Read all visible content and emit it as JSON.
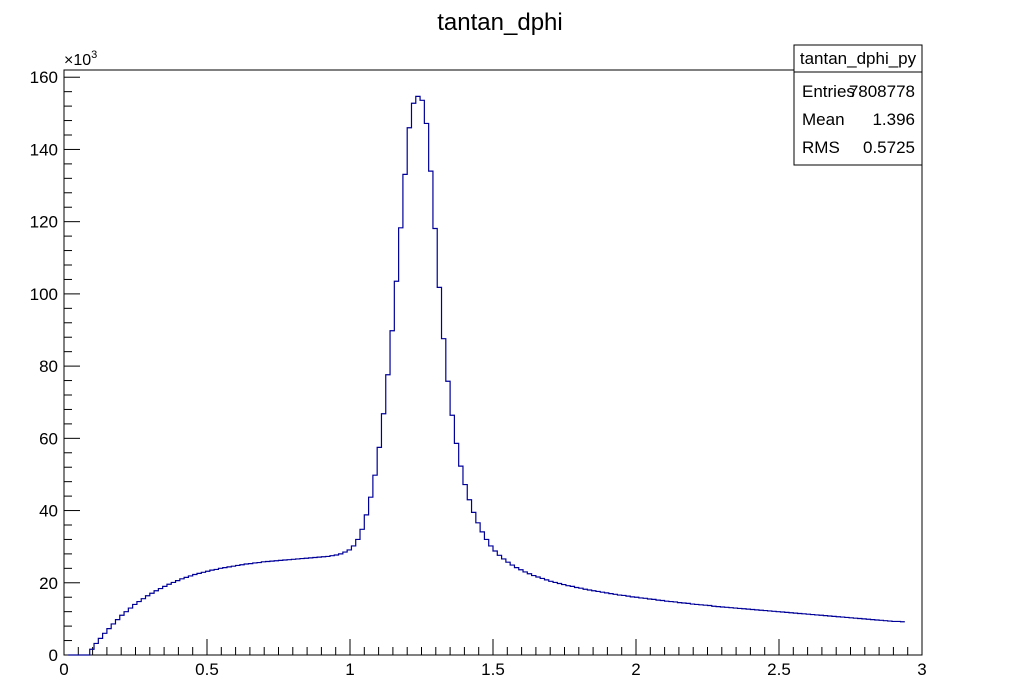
{
  "chart_data": {
    "type": "histogram",
    "title": "tantan_dphi",
    "xlabel": "",
    "ylabel": "",
    "xlim": [
      0,
      3
    ],
    "ylim": [
      0,
      162000
    ],
    "y_exponent_label": "×10³",
    "x_ticks": [
      0,
      0.5,
      1,
      1.5,
      2,
      2.5,
      3
    ],
    "x_tick_labels": [
      "0",
      "0.5",
      "1",
      "1.5",
      "2",
      "2.5",
      "3"
    ],
    "y_ticks": [
      0,
      20000,
      40000,
      60000,
      80000,
      100000,
      120000,
      140000,
      160000
    ],
    "y_tick_labels": [
      "0",
      "20",
      "40",
      "60",
      "80",
      "100",
      "120",
      "140",
      "160"
    ],
    "line_color": "#000099",
    "grid": false,
    "bin_width": 0.015,
    "x_start": 0.015,
    "values": [
      0,
      0,
      0,
      0,
      0,
      1600,
      3200,
      4600,
      6000,
      7300,
      8600,
      9800,
      11000,
      12000,
      13000,
      14000,
      14800,
      15600,
      16400,
      17100,
      17800,
      18400,
      19000,
      19600,
      20100,
      20600,
      21100,
      21500,
      21900,
      22300,
      22600,
      22900,
      23200,
      23500,
      23700,
      24000,
      24200,
      24400,
      24600,
      24800,
      25000,
      25200,
      25300,
      25500,
      25600,
      25800,
      25900,
      26000,
      26100,
      26200,
      26300,
      26400,
      26500,
      26600,
      26700,
      26800,
      26900,
      27000,
      27100,
      27200,
      27300,
      27500,
      27700,
      28000,
      28500,
      29100,
      30200,
      32000,
      34800,
      38800,
      43700,
      49800,
      57500,
      66800,
      77600,
      89800,
      103500,
      118300,
      133100,
      146000,
      152800,
      154700,
      153600,
      147200,
      134000,
      118100,
      101800,
      87600,
      75800,
      66400,
      58600,
      52300,
      47200,
      43000,
      39500,
      36600,
      34100,
      32000,
      30200,
      28800,
      27600,
      26600,
      25700,
      24900,
      24200,
      23600,
      23000,
      22500,
      22000,
      21600,
      21200,
      20800,
      20400,
      20100,
      19800,
      19500,
      19200,
      19000,
      18700,
      18500,
      18200,
      18000,
      17800,
      17600,
      17400,
      17200,
      17000,
      16800,
      16600,
      16500,
      16300,
      16100,
      16000,
      15800,
      15700,
      15500,
      15400,
      15200,
      15100,
      14900,
      14800,
      14700,
      14500,
      14400,
      14300,
      14100,
      14000,
      13900,
      13800,
      13700,
      13500,
      13400,
      13300,
      13200,
      13100,
      13000,
      12900,
      12800,
      12700,
      12600,
      12500,
      12400,
      12300,
      12200,
      12100,
      12000,
      11900,
      11800,
      11700,
      11600,
      11500,
      11400,
      11300,
      11200,
      11100,
      11000,
      10900,
      10800,
      10700,
      10600,
      10500,
      10400,
      10300,
      10200,
      10100,
      10000,
      9900,
      9800,
      9700,
      9600,
      9500,
      9400,
      9300,
      9300,
      9200
    ]
  },
  "stats_box": {
    "name": "tantan_dphi_py",
    "rows": [
      {
        "label": "Entries",
        "value": "7808778"
      },
      {
        "label": "Mean",
        "value": "1.396"
      },
      {
        "label": "RMS",
        "value": "0.5725"
      }
    ]
  }
}
